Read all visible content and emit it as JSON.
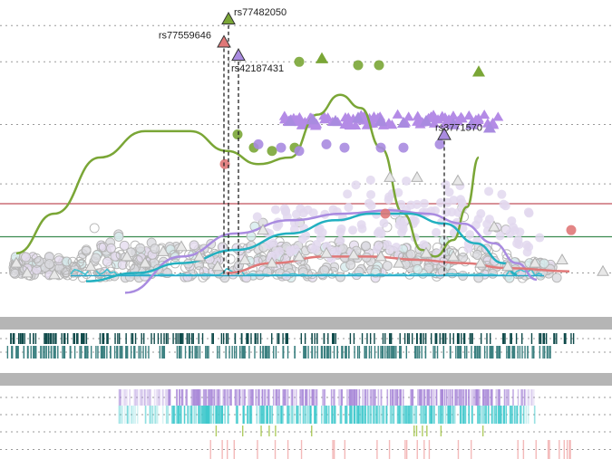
{
  "chart_data": {
    "type": "scatter",
    "x_range": [
      0,
      675
    ],
    "y_range": [
      0,
      9
    ],
    "threshold_lines": [
      {
        "y": 3.1,
        "color": "#c0505a"
      },
      {
        "y": 2.1,
        "color": "#3a8a50"
      }
    ],
    "dotted_gridlines_y": [
      1.0,
      3.7,
      5.5,
      7.4,
      8.5
    ],
    "highlighted_snps": [
      {
        "label": "rs77482050",
        "x": 252,
        "y": 8.7,
        "color": "#7aa636"
      },
      {
        "label": "rs77559646",
        "x": 247,
        "y": 8.0,
        "color": "#e07878"
      },
      {
        "label": "rs42187431",
        "x": 263,
        "y": 7.6,
        "color": "#a98be0"
      },
      {
        "label": "rs3771570",
        "x": 490,
        "y": 5.2,
        "color": "#a98be0"
      }
    ],
    "series": [
      {
        "color": "#7aa636",
        "curve": [
          [
            18,
            1.6
          ],
          [
            60,
            2.8
          ],
          [
            110,
            4.5
          ],
          [
            160,
            5.3
          ],
          [
            210,
            5.3
          ],
          [
            250,
            4.7
          ],
          [
            285,
            4.3
          ],
          [
            320,
            4.5
          ],
          [
            350,
            5.8
          ],
          [
            375,
            6.4
          ],
          [
            398,
            6.0
          ],
          [
            420,
            4.8
          ],
          [
            445,
            2.8
          ],
          [
            465,
            1.7
          ],
          [
            480,
            1.5
          ],
          [
            500,
            2.0
          ],
          [
            515,
            3.0
          ],
          [
            528,
            4.5
          ]
        ],
        "points": [
          [
            330,
            7.4
          ],
          [
            355,
            7.5
          ],
          [
            395,
            7.3
          ],
          [
            418,
            7.3
          ],
          [
            528,
            7.1
          ],
          [
            262,
            5.2
          ],
          [
            280,
            4.8
          ],
          [
            300,
            4.7
          ],
          [
            325,
            4.8
          ]
        ]
      },
      {
        "color": "#a98be0",
        "curve": [
          [
            138,
            0.4
          ],
          [
            200,
            1.5
          ],
          [
            260,
            2.2
          ],
          [
            320,
            2.6
          ],
          [
            380,
            2.8
          ],
          [
            430,
            2.9
          ],
          [
            470,
            2.8
          ],
          [
            510,
            2.5
          ],
          [
            545,
            1.9
          ],
          [
            570,
            1.3
          ],
          [
            592,
            0.8
          ]
        ],
        "points": [
          [
            320,
            5.6
          ],
          [
            345,
            5.65
          ],
          [
            370,
            5.6
          ],
          [
            395,
            5.7
          ],
          [
            420,
            5.6
          ],
          [
            445,
            5.55
          ],
          [
            470,
            5.6
          ],
          [
            500,
            5.5
          ],
          [
            520,
            5.5
          ],
          [
            540,
            5.4
          ],
          [
            285,
            4.9
          ],
          [
            310,
            4.8
          ],
          [
            330,
            4.7
          ],
          [
            360,
            4.9
          ],
          [
            380,
            4.8
          ],
          [
            420,
            4.8
          ],
          [
            445,
            4.8
          ],
          [
            485,
            4.9
          ]
        ]
      },
      {
        "color": "#22b0c0",
        "curve": [
          [
            95,
            0.75
          ],
          [
            150,
            1.0
          ],
          [
            200,
            1.3
          ],
          [
            260,
            1.7
          ],
          [
            320,
            2.2
          ],
          [
            370,
            2.6
          ],
          [
            410,
            2.8
          ],
          [
            450,
            2.8
          ],
          [
            490,
            2.5
          ],
          [
            525,
            1.9
          ],
          [
            555,
            1.3
          ],
          [
            570,
            0.95
          ]
        ],
        "points": []
      },
      {
        "color": "#e07878",
        "curve": [
          [
            250,
            1.0
          ],
          [
            300,
            1.3
          ],
          [
            360,
            1.5
          ],
          [
            410,
            1.5
          ],
          [
            460,
            1.4
          ],
          [
            510,
            1.3
          ],
          [
            560,
            1.15
          ],
          [
            628,
            1.05
          ]
        ],
        "points": [
          [
            248,
            4.3
          ],
          [
            425,
            2.8
          ],
          [
            630,
            2.3
          ]
        ]
      },
      {
        "color": "#bbbbbb",
        "curve": [],
        "points": [
          [
            18,
            1.3
          ],
          [
            30,
            1.0
          ],
          [
            60,
            0.95
          ],
          [
            100,
            1.2
          ],
          [
            140,
            1.5
          ],
          [
            160,
            1.3
          ],
          [
            180,
            1.65
          ],
          [
            200,
            1.8
          ],
          [
            220,
            1.5
          ],
          [
            240,
            1.2
          ],
          [
            270,
            1.4
          ],
          [
            300,
            1.3
          ],
          [
            330,
            1.5
          ],
          [
            360,
            1.6
          ],
          [
            390,
            1.55
          ],
          [
            420,
            1.5
          ],
          [
            440,
            1.3
          ],
          [
            470,
            1.6
          ],
          [
            500,
            1.5
          ],
          [
            530,
            1.3
          ],
          [
            560,
            1.2
          ],
          [
            590,
            1.3
          ],
          [
            620,
            1.4
          ],
          [
            665,
            1.05
          ],
          [
            290,
            2.3
          ],
          [
            430,
            3.9
          ],
          [
            460,
            3.9
          ],
          [
            505,
            3.8
          ],
          [
            545,
            2.4
          ]
        ]
      }
    ]
  },
  "tracks": {
    "gray_bars": [
      1,
      2
    ],
    "tick_rows": [
      {
        "row": 1,
        "color": "#0f4a4a"
      },
      {
        "row": 2,
        "color": "#3b8080"
      }
    ],
    "heat_rows": [
      {
        "row": 1,
        "color": "#a989d8"
      },
      {
        "row": 2,
        "color": "#3ec8cc"
      },
      {
        "row": 3,
        "color": "#9bbf3a"
      },
      {
        "row": 4,
        "color": "#f0a8a8"
      }
    ]
  }
}
